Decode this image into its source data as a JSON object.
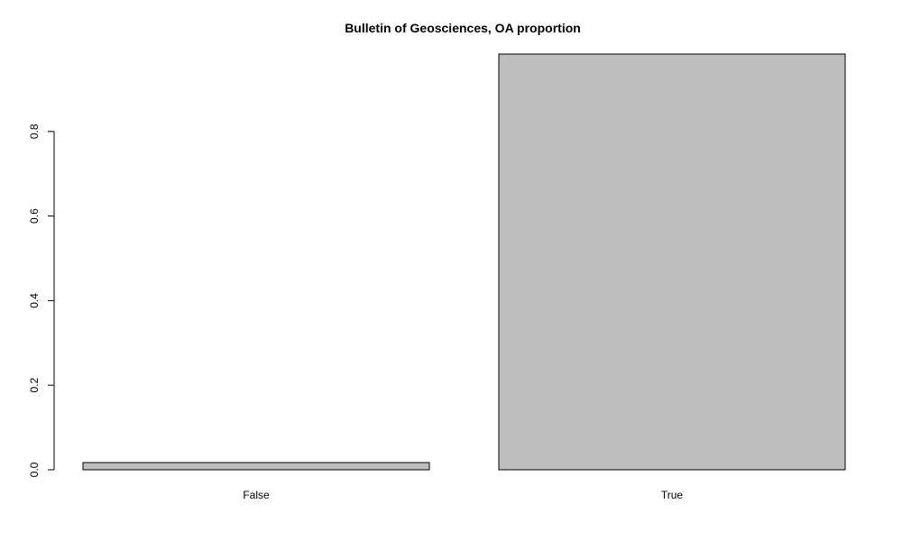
{
  "chart_data": {
    "type": "bar",
    "title": "Bulletin of Geosciences, OA proportion",
    "xlabel": "",
    "ylabel": "",
    "categories": [
      "False",
      "True"
    ],
    "values": [
      0.017,
      0.983
    ],
    "ylim": [
      0,
      1
    ],
    "yticks": [
      "0.0",
      "0.2",
      "0.4",
      "0.6",
      "0.8"
    ],
    "grid": false,
    "legend": "none",
    "colors": {
      "bar_fill": "#bebebe",
      "bar_stroke": "#000000",
      "axis": "#000000",
      "background": "#ffffff"
    }
  }
}
